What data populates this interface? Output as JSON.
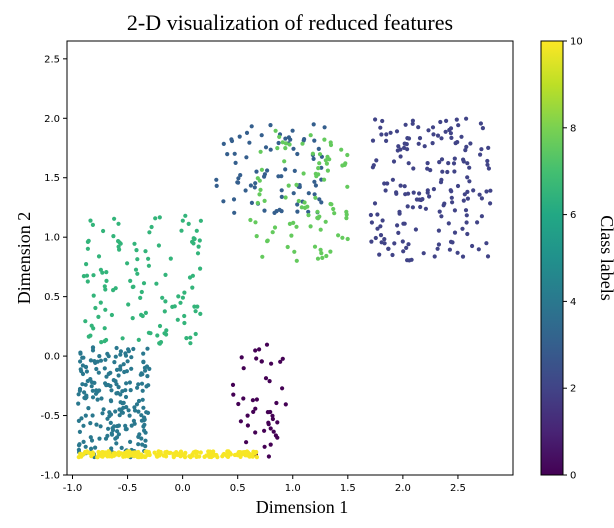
{
  "chart_data": {
    "type": "scatter",
    "title": "2-D visualization of reduced features",
    "xlabel": "Dimension 1",
    "ylabel": "Dimension 2",
    "xlim": [
      -1.05,
      3.0
    ],
    "ylim": [
      -1.0,
      2.65
    ],
    "xticks": [
      "-1.0",
      "-0.5",
      "0.0",
      "0.5",
      "1.0",
      "1.5",
      "2.0",
      "2.5"
    ],
    "yticks": [
      "-1.0",
      "-0.5",
      "0.0",
      "0.5",
      "1.0",
      "1.5",
      "2.0",
      "2.5"
    ],
    "colorbar": {
      "label": "Class labels",
      "range": [
        0,
        10
      ],
      "ticks": [
        "0",
        "2",
        "4",
        "6",
        "8",
        "10"
      ],
      "colormap": "viridis"
    },
    "clusters": [
      {
        "class": 0,
        "x": [
          0.45,
          0.95
        ],
        "y": [
          -0.85,
          0.1
        ],
        "n": 45,
        "note": "sparse purple points at lower-right of origin"
      },
      {
        "class": 2,
        "x": [
          1.7,
          2.8
        ],
        "y": [
          0.8,
          2.0
        ],
        "n": 180,
        "note": "dense dark-blue cluster upper right"
      },
      {
        "class": 3,
        "x": [
          0.3,
          1.3
        ],
        "y": [
          1.2,
          1.95
        ],
        "n": 80,
        "note": "dark-blue points along upper arm"
      },
      {
        "class": 4,
        "x": [
          -0.95,
          -0.3
        ],
        "y": [
          -0.85,
          0.1
        ],
        "n": 220,
        "note": "teal cluster bottom-left"
      },
      {
        "class": 6.5,
        "x": [
          -0.9,
          0.2
        ],
        "y": [
          0.1,
          1.2
        ],
        "n": 120,
        "note": "green band rising diagonally"
      },
      {
        "class": 7.6,
        "x": [
          0.6,
          1.5
        ],
        "y": [
          0.8,
          1.9
        ],
        "n": 90,
        "note": "light-green points upper middle"
      },
      {
        "class": 9.9,
        "x": [
          -0.95,
          0.7
        ],
        "y": [
          -0.85,
          -0.8
        ],
        "n": 200,
        "note": "yellow points along bottom edge"
      }
    ]
  },
  "colors": {
    "viridis_0": "#440154",
    "viridis_10": "#fde725"
  }
}
